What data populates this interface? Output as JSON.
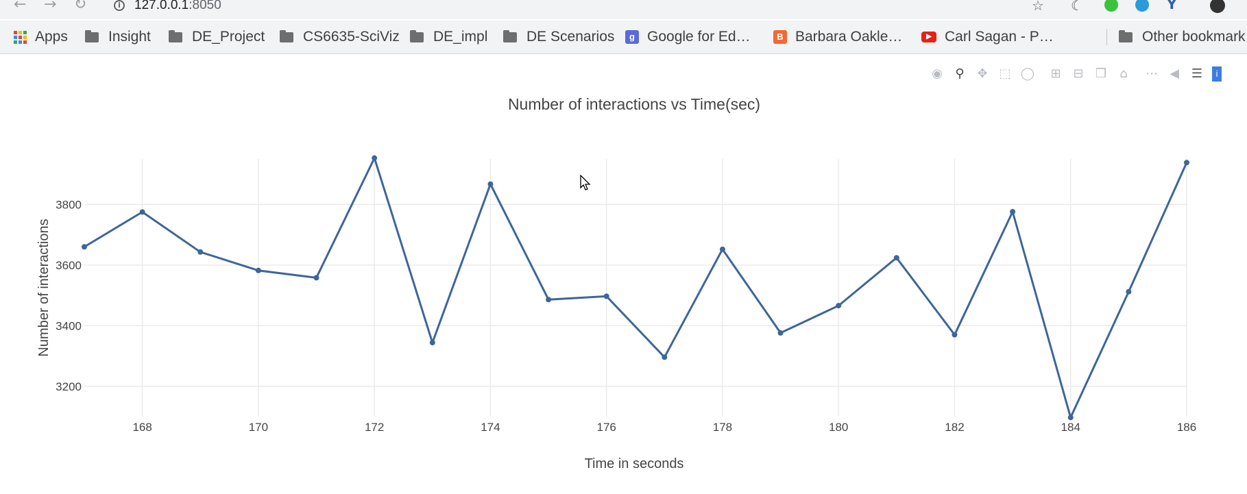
{
  "browser": {
    "url_host": "127.0.0.1",
    "url_port": ":8050"
  },
  "bookmarks": [
    {
      "label": "Apps",
      "icon": "apps-grid-icon"
    },
    {
      "label": "Insight",
      "icon": "folder-icon"
    },
    {
      "label": "DE_Project",
      "icon": "folder-icon"
    },
    {
      "label": "CS6635-SciViz",
      "icon": "folder-icon"
    },
    {
      "label": "DE_impl",
      "icon": "folder-icon"
    },
    {
      "label": "DE Scenarios",
      "icon": "folder-icon"
    },
    {
      "label": "Google for Ed…",
      "icon": "google-edu-icon"
    },
    {
      "label": "Barbara Oakle…",
      "icon": "blogger-icon"
    },
    {
      "label": "Carl Sagan - P…",
      "icon": "youtube-icon"
    },
    {
      "label": "Other bookmark",
      "icon": "folder-icon"
    }
  ],
  "colors": {
    "line": "#3d6699",
    "grid": "#ebebeb",
    "tick_text": "#444444"
  },
  "chart_data": {
    "type": "line",
    "title": "Number of interactions vs Time(sec)",
    "xlabel": "Time in seconds",
    "ylabel": "Number of interactions",
    "xlim": [
      167,
      186
    ],
    "ylim": [
      3100,
      3950
    ],
    "x_ticks": [
      168,
      170,
      172,
      174,
      176,
      178,
      180,
      182,
      184,
      186
    ],
    "y_ticks": [
      3200,
      3400,
      3600,
      3800
    ],
    "grid": true,
    "series": [
      {
        "x": [
          167,
          168,
          169,
          170,
          171,
          172,
          173,
          174,
          175,
          176,
          177,
          178,
          179,
          180,
          181,
          182,
          183,
          184,
          185,
          186
        ],
        "y": [
          3660,
          3775,
          3643,
          3582,
          3558,
          3953,
          3344,
          3867,
          3486,
          3497,
          3296,
          3652,
          3376,
          3466,
          3624,
          3370,
          3776,
          3097,
          3512,
          3938
        ]
      }
    ]
  }
}
